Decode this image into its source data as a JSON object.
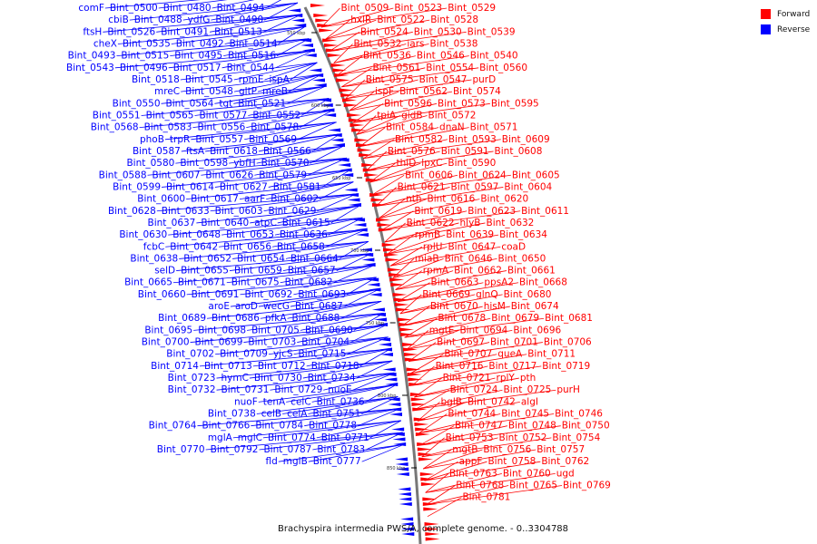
{
  "caption": "Brachyspira intermedia PWS/A, complete genome. - 0..3304788",
  "legend": [
    {
      "label": "Forward",
      "color": "#ff0000"
    },
    {
      "label": "Reverse",
      "color": "#0000ff"
    }
  ],
  "colors": {
    "forward": "#ff0000",
    "reverse": "#0000ff",
    "backbone": "#777777"
  },
  "scale_marks": [
    "550 kbp",
    "600 kbp",
    "650 kbp",
    "700 kbp",
    "750 kbp",
    "800 kbp",
    "850 kbp"
  ],
  "forward_labels": [
    "Bint_0509",
    "Bint_0523",
    "Bint_0529",
    "hxlR",
    "Bint_0522",
    "Bint_0528",
    "Bint_0524",
    "Bint_0530",
    "Bint_0539",
    "Bint_0532",
    "iars",
    "Bint_0538",
    "Bint_0536",
    "Bint_0546",
    "Bint_0540",
    "Bint_0561",
    "Bint_0554",
    "Bint_0560",
    "Bint_0575",
    "Bint_0547",
    "purD",
    "ispF",
    "Bint_0562",
    "Bint_0574",
    "Bint_0596",
    "Bint_0573",
    "Bint_0595",
    "tpiA",
    "gidB",
    "Bint_0572",
    "Bint_0584",
    "dnaN",
    "Bint_0571",
    "Bint_0582",
    "Bint_0593",
    "Bint_0609",
    "Bint_0576",
    "Bint_0591",
    "Bint_0608",
    "thiD",
    "lpxC",
    "Bint_0590",
    "Bint_0606",
    "Bint_0624",
    "Bint_0605",
    "Bint_0621",
    "Bint_0597",
    "Bint_0604",
    "nth",
    "Bint_0616",
    "Bint_0620",
    "Bint_0619",
    "Bint_0623",
    "Bint_0611",
    "Bint_0622",
    "hlyB",
    "Bint_0632",
    "rpmB",
    "Bint_0639",
    "Bint_0634",
    "rplU",
    "Bint_0647",
    "coaD",
    "miaB",
    "Bint_0646",
    "Bint_0650",
    "rpmA",
    "Bint_0662",
    "Bint_0661",
    "Bint_0663",
    "ppsA2",
    "Bint_0668",
    "Bint_0669",
    "glnQ",
    "Bint_0680",
    "Bint_0670",
    "hisM",
    "Bint_0674",
    "Bint_0678",
    "Bint_0679",
    "Bint_0681",
    "mgtE",
    "Bint_0694",
    "Bint_0696",
    "Bint_0697",
    "Bint_0701",
    "Bint_0706",
    "Bint_0707",
    "queA",
    "Bint_0711",
    "Bint_0716",
    "Bint_0717",
    "Bint_0719",
    "Bint_0721",
    "rplY",
    "pth",
    "Bint_0724",
    "Bint_0725",
    "purH",
    "bglB",
    "Bint_0742",
    "algI",
    "Bint_0744",
    "Bint_0745",
    "Bint_0746",
    "Bint_0747",
    "Bint_0748",
    "Bint_0750",
    "Bint_0753",
    "Bint_0752",
    "Bint_0754",
    "mgtB",
    "Bint_0756",
    "Bint_0757",
    "appF",
    "Bint_0758",
    "Bint_0762",
    "Bint_0763",
    "Bint_0760",
    "ugd",
    "Bint_0768",
    "Bint_0765",
    "Bint_0769",
    "Bint_0781"
  ],
  "reverse_labels": [
    "comF",
    "Bint_0500",
    "Bint_0480",
    "Bint_0494",
    "cbiB",
    "Bint_0488",
    "ydfG",
    "Bint_0490",
    "ftsH",
    "Bint_0526",
    "Bint_0491",
    "Bint_0513",
    "cheX",
    "Bint_0535",
    "Bint_0492",
    "Bint_0514",
    "Bint_0493",
    "Bint_0515",
    "Bint_0495",
    "Bint_0516",
    "Bint_0543",
    "Bint_0496",
    "Bint_0517",
    "Bint_0544",
    "Bint_0518",
    "Bint_0545",
    "rpmE",
    "ispA",
    "mreC",
    "Bint_0548",
    "gltP",
    "mreB",
    "Bint_0550",
    "Bint_0564",
    "tgt",
    "Bint_0521",
    "Bint_0551",
    "Bint_0565",
    "Bint_0577",
    "Bint_0552",
    "Bint_0568",
    "Bint_0583",
    "Bint_0556",
    "Bint_0578",
    "phoB",
    "trpR",
    "Bint_0557",
    "Bint_0569",
    "Bint_0587",
    "ftsA",
    "Bint_0618",
    "Bint_0566",
    "Bint_0580",
    "Bint_0598",
    "ybfH",
    "Bint_0570",
    "Bint_0588",
    "Bint_0607",
    "Bint_0626",
    "Bint_0579",
    "Bint_0599",
    "Bint_0614",
    "Bint_0627",
    "Bint_0581",
    "Bint_0600",
    "Bint_0617",
    "aarF",
    "Bint_0602",
    "Bint_0628",
    "Bint_0633",
    "Bint_0603",
    "Bint_0629",
    "Bint_0637",
    "Bint_0640",
    "atpC",
    "Bint_0615",
    "Bint_0630",
    "Bint_0648",
    "Bint_0653",
    "Bint_0636",
    "fcbC",
    "Bint_0642",
    "Bint_0656",
    "Bint_0658",
    "Bint_0638",
    "Bint_0652",
    "Bint_0654",
    "Bint_0664",
    "selD",
    "Bint_0655",
    "Bint_0659",
    "Bint_0657",
    "Bint_0665",
    "Bint_0671",
    "Bint_0675",
    "Bint_0682",
    "Bint_0660",
    "Bint_0691",
    "Bint_0692",
    "Bint_0693",
    "aroE",
    "aroD",
    "wecG",
    "Bint_0687",
    "Bint_0689",
    "Bint_0686",
    "pfkA",
    "Bint_0688",
    "Bint_0695",
    "Bint_0698",
    "Bint_0705",
    "Bint_0690",
    "Bint_0700",
    "Bint_0699",
    "Bint_0703",
    "Bint_0704",
    "Bint_0702",
    "Bint_0709",
    "yjcS",
    "Bint_0715",
    "Bint_0714",
    "Bint_0713",
    "Bint_0712",
    "Bint_0718",
    "Bint_0723",
    "hymC",
    "Bint_0730",
    "Bint_0734",
    "Bint_0732",
    "Bint_0731",
    "Bint_0729",
    "nuoE",
    "nuoF",
    "tenA",
    "celC",
    "Bint_0736",
    "Bint_0738",
    "celB",
    "celA",
    "Bint_0751",
    "Bint_0764",
    "Bint_0766",
    "Bint_0784",
    "Bint_0778",
    "mglA",
    "mglC",
    "Bint_0774",
    "Bint_0771",
    "Bint_0770",
    "Bint_0792",
    "Bint_0787",
    "Bint_0783",
    "fld",
    "mglB",
    "Bint_0777"
  ]
}
